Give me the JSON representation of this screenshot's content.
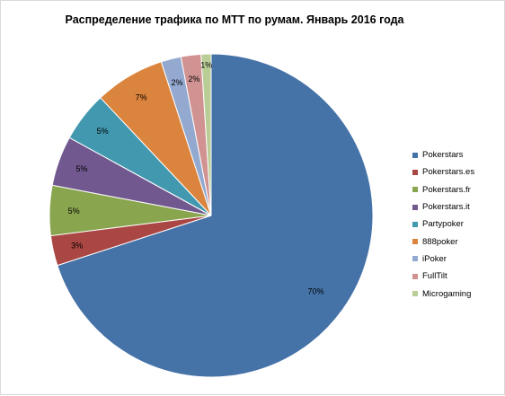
{
  "chart_data": {
    "type": "pie",
    "title": "Распределение трафика по МТТ по румам. Январь 2016 года",
    "legend_position": "right",
    "start": "12 o'clock, clockwise",
    "slices": [
      {
        "name": "Pokerstars",
        "value": 70,
        "label": "70%",
        "color": "#4572a7"
      },
      {
        "name": "Pokerstars.es",
        "value": 3,
        "label": "3%",
        "color": "#aa4643"
      },
      {
        "name": "Pokerstars.fr",
        "value": 5,
        "label": "5%",
        "color": "#89a54e"
      },
      {
        "name": "Pokerstars.it",
        "value": 5,
        "label": "5%",
        "color": "#71588f"
      },
      {
        "name": "Partypoker",
        "value": 5,
        "label": "5%",
        "color": "#4198af"
      },
      {
        "name": "888poker",
        "value": 7,
        "label": "7%",
        "color": "#db843d"
      },
      {
        "name": "iPoker",
        "value": 2,
        "label": "2%",
        "color": "#93a9cf"
      },
      {
        "name": "FullTilt",
        "value": 2,
        "label": "2%",
        "color": "#d19392"
      },
      {
        "name": "Microgaming",
        "value": 1,
        "label": "1%",
        "color": "#b9cd96"
      }
    ]
  }
}
